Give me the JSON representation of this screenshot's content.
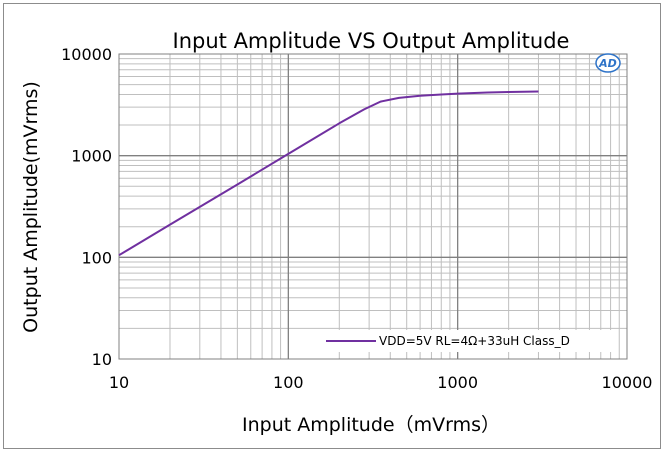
{
  "chart_data": {
    "type": "line",
    "title": "Input  Amplitude VS Output Amplitude",
    "xlabel": "Input Amplitude（mVrms）",
    "ylabel": "Output Amplitude(mVrms)",
    "xscale": "log",
    "yscale": "log",
    "xlim": [
      10,
      10000
    ],
    "ylim": [
      10,
      10000
    ],
    "x_ticks": [
      "10",
      "100",
      "1000",
      "10000"
    ],
    "y_ticks": [
      "10",
      "100",
      "1000",
      "10000"
    ],
    "grid": true,
    "legend_position": "bottom-right",
    "series": [
      {
        "name": "VDD=5V RL=4Ω+33uH Class_D",
        "color": "#7030a0",
        "x": [
          10,
          20,
          50,
          100,
          200,
          280,
          350,
          450,
          600,
          800,
          1000,
          1500,
          2000,
          3000
        ],
        "y": [
          105,
          210,
          520,
          1040,
          2080,
          2850,
          3400,
          3700,
          3880,
          4000,
          4080,
          4180,
          4230,
          4280
        ]
      }
    ]
  },
  "logo": {
    "text": "AD",
    "color": "#2e73c8",
    "icon": "ad-logo-icon"
  }
}
